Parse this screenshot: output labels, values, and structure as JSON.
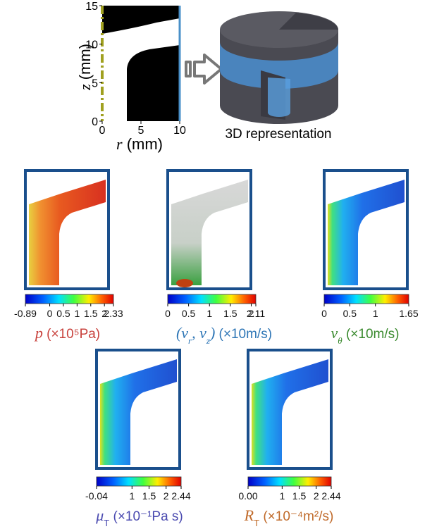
{
  "geometry_plot": {
    "y_symbol": "z",
    "y_unit": "(mm)",
    "x_symbol": "r",
    "x_unit": "(mm)",
    "ylim": [
      0,
      15
    ],
    "yticks": [
      0,
      5,
      10,
      15
    ],
    "xlim": [
      0,
      10
    ],
    "xticks": [
      0,
      5,
      10
    ]
  },
  "caption_3d": "3D representation",
  "colorbars": [
    {
      "lim": [
        -0.89,
        2.33
      ],
      "ticks": [
        -0.89,
        0,
        0.5,
        1,
        1.5,
        2,
        2.33
      ],
      "color": "#c8413c",
      "label": [
        {
          "text": "p",
          "math": true
        },
        {
          "text": " (×10⁵Pa)"
        }
      ]
    },
    {
      "lim": [
        0,
        2.11
      ],
      "ticks": [
        0,
        0.5,
        1,
        1.5,
        2,
        2.11
      ],
      "color": "#2e76b6",
      "label": [
        {
          "text": "(",
          "math": true
        },
        {
          "text": "v",
          "math": true
        },
        {
          "text": "r",
          "math": true,
          "sub": true
        },
        {
          "text": ", ",
          "math": true
        },
        {
          "text": "v",
          "math": true
        },
        {
          "text": "z",
          "math": true,
          "sub": true
        },
        {
          "text": ")",
          "math": true
        },
        {
          "text": " (×10m/s)"
        }
      ]
    },
    {
      "lim": [
        0,
        1.65
      ],
      "ticks": [
        0,
        0.5,
        1,
        1.65
      ],
      "color": "#3a8a2e",
      "label": [
        {
          "text": "v",
          "math": true
        },
        {
          "text": "θ",
          "math": true,
          "sub": true
        },
        {
          "text": " (×10m/s)"
        }
      ]
    },
    {
      "lim": [
        -0.04,
        2.44
      ],
      "ticks": [
        -0.04,
        1,
        1.5,
        2,
        2.44
      ],
      "color": "#4a4ab0",
      "label": [
        {
          "text": "μ",
          "math": true
        },
        {
          "text": "T",
          "sub": true
        },
        {
          "text": " (×10⁻¹Pa s)"
        }
      ]
    },
    {
      "lim": [
        0,
        2.44
      ],
      "ticks": [
        {
          "value": 0,
          "label": "0.00"
        },
        1,
        1.5,
        2,
        2.44
      ],
      "color": "#c06a2a",
      "label": [
        {
          "text": "R",
          "math": true
        },
        {
          "text": "T",
          "sub": true
        },
        {
          "text": " (×10⁻⁴m²/s)"
        }
      ]
    }
  ]
}
